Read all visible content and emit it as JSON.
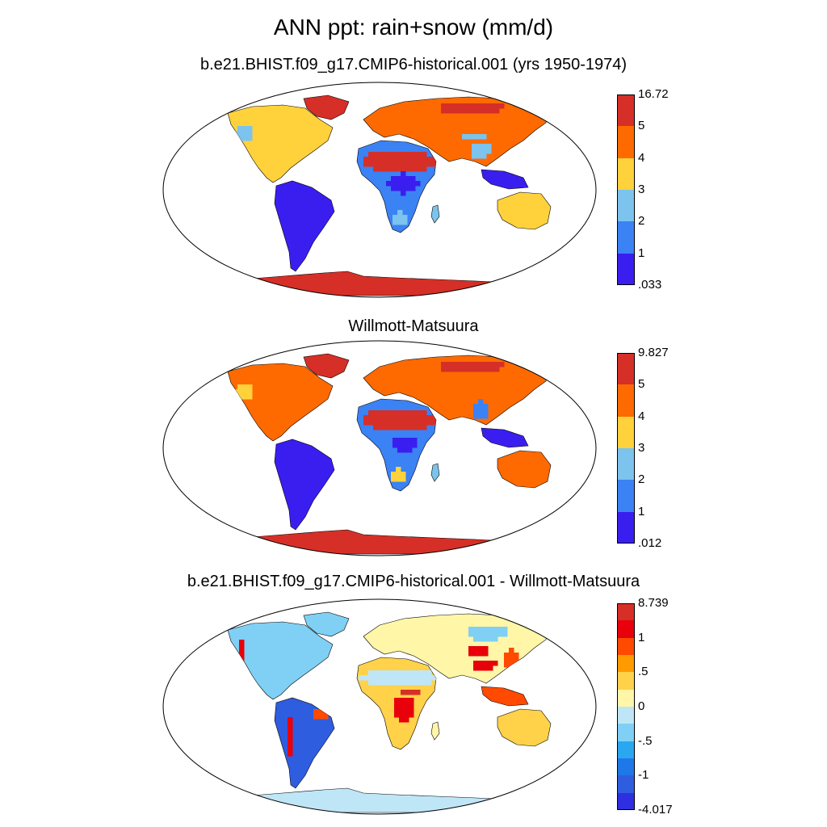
{
  "title": "ANN ppt: rain+snow (mm/d)",
  "panels": [
    {
      "id": "model",
      "title": "b.e21.BHIST.f09_g17.CMIP6-historical.001 (yrs 1950-1974)",
      "colorbar": {
        "labels": [
          "16.72",
          "5",
          "4",
          "3",
          "2",
          "1",
          ".033"
        ],
        "colors": [
          "#d62f27",
          "#ff6a00",
          "#ffd23c",
          "#7cc3ee",
          "#3b82f5",
          "#3a1ef0"
        ]
      }
    },
    {
      "id": "obs",
      "title": "Willmott-Matsuura",
      "colorbar": {
        "labels": [
          "9.827",
          "5",
          "4",
          "3",
          "2",
          "1",
          ".012"
        ],
        "colors": [
          "#d62f27",
          "#ff6a00",
          "#ffd23c",
          "#7cc3ee",
          "#3b82f5",
          "#3a1ef0"
        ]
      }
    },
    {
      "id": "diff",
      "title": "b.e21.BHIST.f09_g17.CMIP6-historical.001 - Willmott-Matsuura",
      "colorbar": {
        "labels": [
          "8.739",
          "",
          "1",
          "",
          ".5",
          "",
          "0",
          "",
          "-.5",
          "",
          "-1",
          "",
          "-4.017"
        ],
        "colors": [
          "#d62f27",
          "#e8000b",
          "#ff4a00",
          "#ff9a00",
          "#ffd24a",
          "#fff6a8",
          "#bfe6f7",
          "#7fd0f4",
          "#2aa7f0",
          "#1f78e8",
          "#2f5de0",
          "#2f2ee0"
        ]
      }
    }
  ]
}
